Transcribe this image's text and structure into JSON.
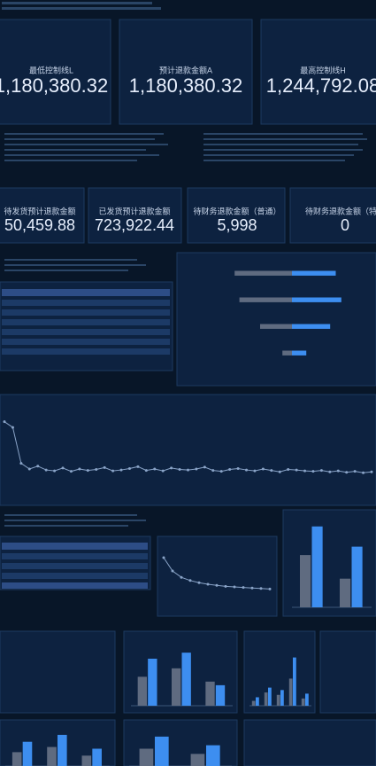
{
  "kpis_top": [
    {
      "label": "最低控制线L",
      "value": "1,180,380.32"
    },
    {
      "label": "预计退款金额A",
      "value": "1,180,380.32"
    },
    {
      "label": "最高控制线H",
      "value": "1,244,792.08"
    }
  ],
  "kpis_mid": [
    {
      "label": "待发货预计退款金额",
      "value": "50,459.88"
    },
    {
      "label": "已发货预计退款金额",
      "value": "723,922.44"
    },
    {
      "label": "待财务退款金额（普通）",
      "value": "5,998"
    },
    {
      "label": "待财务退款金额（特殊",
      "value": "0"
    }
  ],
  "chart_data": [
    {
      "type": "hbar",
      "categories": [
        null,
        null,
        null,
        null
      ],
      "xlim": [
        -100,
        100
      ],
      "series": [
        {
          "color": "#5f6b80",
          "values": [
            -72,
            -66,
            -40,
            -12
          ]
        },
        {
          "color": "#3d8ef0",
          "values": [
            55,
            62,
            48,
            18
          ]
        }
      ]
    },
    {
      "type": "line",
      "color": "#8aa4c8",
      "ylim": [
        0,
        150
      ],
      "values": [
        130,
        118,
        42,
        30,
        36,
        28,
        26,
        32,
        25,
        30,
        27,
        29,
        33,
        26,
        28,
        31,
        35,
        27,
        30,
        26,
        32,
        29,
        28,
        30,
        34,
        27,
        25,
        29,
        31,
        28,
        26,
        30,
        27,
        24,
        29,
        28,
        26,
        25,
        27,
        24,
        26,
        23,
        25,
        22,
        24
      ]
    },
    {
      "type": "bar",
      "categories": [
        null,
        null
      ],
      "ylim": [
        0,
        100
      ],
      "series": [
        {
          "color": "#5f6b80",
          "values": [
            62,
            34
          ]
        },
        {
          "color": "#3d8ef0",
          "values": [
            96,
            72
          ]
        }
      ]
    },
    {
      "type": "line",
      "color": "#8aa4c8",
      "ylim": [
        0,
        100
      ],
      "values": [
        85,
        60,
        48,
        42,
        38,
        35,
        33,
        31,
        30,
        29,
        28,
        27,
        26
      ]
    },
    {
      "type": "bar",
      "categories": [
        null,
        null,
        null
      ],
      "ylim": [
        0,
        100
      ],
      "series": [
        {
          "color": "#5f6b80",
          "values": [
            48,
            62,
            40
          ]
        },
        {
          "color": "#3d8ef0",
          "values": [
            78,
            88,
            34
          ]
        }
      ]
    },
    {
      "type": "bar",
      "categories": [
        null,
        null,
        null,
        null,
        null
      ],
      "ylim": [
        0,
        100
      ],
      "series": [
        {
          "color": "#5f6b80",
          "values": [
            8,
            22,
            18,
            45,
            12
          ]
        },
        {
          "color": "#3d8ef0",
          "values": [
            14,
            30,
            26,
            80,
            20
          ]
        }
      ]
    },
    {
      "type": "bar",
      "categories": [
        null,
        null,
        null
      ],
      "ylim": [
        0,
        100
      ],
      "series": [
        {
          "color": "#5f6b80",
          "values": [
            40,
            55,
            30
          ]
        },
        {
          "color": "#3d8ef0",
          "values": [
            70,
            90,
            50
          ]
        }
      ]
    },
    {
      "type": "bar",
      "categories": [
        null,
        null
      ],
      "ylim": [
        0,
        100
      ],
      "series": [
        {
          "color": "#5f6b80",
          "values": [
            50,
            35
          ]
        },
        {
          "color": "#3d8ef0",
          "values": [
            85,
            60
          ]
        }
      ]
    }
  ]
}
